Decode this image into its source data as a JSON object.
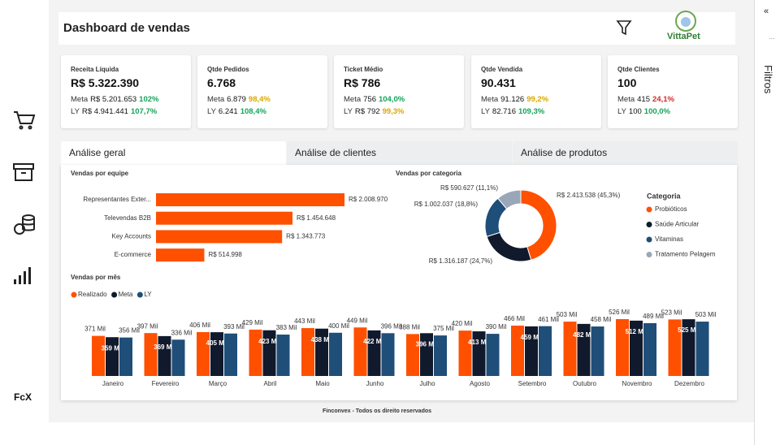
{
  "sidebar": {
    "brand": "FcX"
  },
  "header": {
    "title": "Dashboard de vendas",
    "logo": "VittaPet"
  },
  "filters_panel": {
    "label": "Filtros"
  },
  "kpis": [
    {
      "title": "Receita Líquida",
      "value": "R$ 5.322.390",
      "meta": {
        "label": "Meta",
        "value": "R$ 5.201.653",
        "pct": "102%",
        "color": "#14a35a"
      },
      "ly": {
        "label": "LY",
        "value": "R$ 4.941.441",
        "pct": "107,7%",
        "color": "#14a35a"
      }
    },
    {
      "title": "Qtde Pedidos",
      "value": "6.768",
      "meta": {
        "label": "Meta",
        "value": "6.879",
        "pct": "98,4%",
        "color": "#d9a800"
      },
      "ly": {
        "label": "LY",
        "value": "6.241",
        "pct": "108,4%",
        "color": "#14a35a"
      }
    },
    {
      "title": "Ticket Médio",
      "value": "R$ 786",
      "meta": {
        "label": "Meta",
        "value": "756",
        "pct": "104,0%",
        "color": "#14a35a"
      },
      "ly": {
        "label": "LY",
        "value": "R$ 792",
        "pct": "99,3%",
        "color": "#d9a800"
      }
    },
    {
      "title": "Qtde Vendida",
      "value": "90.431",
      "meta": {
        "label": "Meta",
        "value": "91.126",
        "pct": "99,2%",
        "color": "#d9a800"
      },
      "ly": {
        "label": "LY",
        "value": "82.716",
        "pct": "109,3%",
        "color": "#14a35a"
      }
    },
    {
      "title": "Qtde Clientes",
      "value": "100",
      "meta": {
        "label": "Meta",
        "value": "415",
        "pct": "24,1%",
        "color": "#d42a2a"
      },
      "ly": {
        "label": "LY",
        "value": "100",
        "pct": "100,0%",
        "color": "#14a35a"
      }
    }
  ],
  "tabs": {
    "items": [
      "Análise geral",
      "Análise de clientes",
      "Análise de produtos"
    ],
    "active": 0
  },
  "charts": [
    {
      "type": "bar",
      "orientation": "horizontal",
      "title": "Vendas por equipe",
      "color": "#ff5000",
      "categories": [
        "Representantes Exter...",
        "Televendas B2B",
        "Key Accounts",
        "E-commerce"
      ],
      "values": [
        2008970,
        1454648,
        1343773,
        514998
      ],
      "value_labels": [
        "R$ 2.008.970",
        "R$ 1.454.648",
        "R$ 1.343.773",
        "R$ 514.998"
      ]
    },
    {
      "type": "donut",
      "title": "Vendas por categoria",
      "legend_title": "Categoria",
      "categories": [
        "Probióticos",
        "Saúde Articular",
        "Vitaminas",
        "Tratamento Pelagem"
      ],
      "values": [
        2413538,
        1316187,
        1002037,
        590627
      ],
      "value_labels": [
        "R$ 2.413.538 (45,3%)",
        "R$ 1.316.187 (24,7%)",
        "R$ 1.002.037 (18,8%)",
        "R$ 590.627 (11,1%)"
      ],
      "colors": [
        "#ff5000",
        "#111a2c",
        "#1f4e79",
        "#9aa7b8"
      ]
    },
    {
      "type": "bar",
      "orientation": "vertical",
      "title": "Vendas por mês",
      "categories": [
        "Janeiro",
        "Fevereiro",
        "Março",
        "Abril",
        "Maio",
        "Junho",
        "Julho",
        "Agosto",
        "Setembro",
        "Outubro",
        "Novembro",
        "Dezembro"
      ],
      "series": [
        {
          "name": "Realizado",
          "color": "#ff5000",
          "values": [
            371,
            397,
            406,
            429,
            443,
            449,
            388,
            420,
            466,
            503,
            526,
            523
          ],
          "value_labels": [
            "371 Mil",
            "397 Mil",
            "406 Mil",
            "429 Mil",
            "443 Mil",
            "449 Mil",
            "388 Mil",
            "420 Mil",
            "466 Mil",
            "503 Mil",
            "526 Mil",
            "523 Mil"
          ]
        },
        {
          "name": "Meta",
          "color": "#111a2c",
          "values": [
            359,
            369,
            405,
            423,
            438,
            422,
            396,
            413,
            459,
            482,
            512,
            525
          ],
          "value_labels": [
            "359 Mil",
            "369 Mil",
            "405 Mil",
            "423 Mil",
            "438 Mil",
            "422 Mil",
            "396 Mil",
            "413 Mil",
            "459 Mil",
            "482 Mil",
            "512 Mil",
            "525 Mil"
          ]
        },
        {
          "name": "LY",
          "color": "#1f4e79",
          "values": [
            356,
            336,
            393,
            383,
            400,
            396,
            375,
            390,
            461,
            458,
            489,
            503
          ],
          "value_labels": [
            "356 Mil",
            "336 Mil",
            "393 Mil",
            "383 Mil",
            "400 Mil",
            "396 Mil",
            "375 Mil",
            "390 Mil",
            "461 Mil",
            "458 Mil",
            "489 Mil",
            "503 Mil"
          ]
        }
      ]
    }
  ],
  "footer": "Finconvex - Todos os direito reservados"
}
